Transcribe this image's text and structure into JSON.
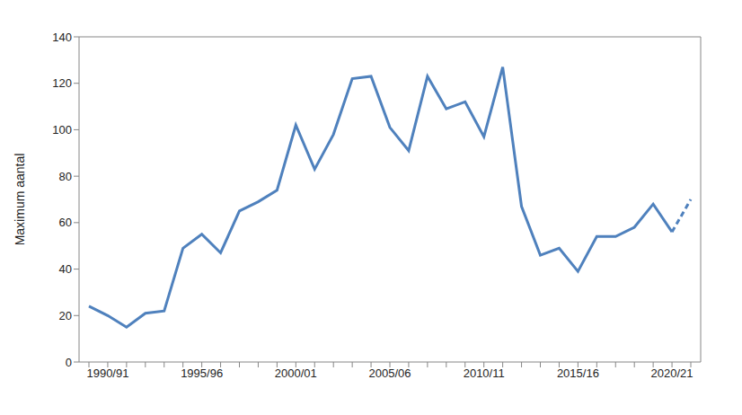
{
  "chart_data": {
    "type": "line",
    "y_label": "Maximum aantal",
    "categories": [
      null,
      "1990/91",
      null,
      null,
      null,
      null,
      "1995/96",
      null,
      null,
      null,
      null,
      "2000/01",
      null,
      null,
      null,
      null,
      "2005/06",
      null,
      null,
      null,
      null,
      "2010/11",
      null,
      null,
      null,
      null,
      "2015/16",
      null,
      null,
      null,
      null,
      "2020/21",
      null
    ],
    "series": [
      {
        "color": "#4f81bd",
        "line_style": "solid",
        "values": [
          24,
          20,
          15,
          21,
          22,
          49,
          55,
          47,
          65,
          69,
          74,
          102,
          83,
          98,
          122,
          123,
          101,
          91,
          123,
          109,
          112,
          97,
          127,
          67,
          46,
          49,
          39,
          54,
          54,
          58,
          68,
          56,
          null
        ]
      },
      {
        "color": "#4f81bd",
        "line_style": "dashed",
        "values": [
          null,
          null,
          null,
          null,
          null,
          null,
          null,
          null,
          null,
          null,
          null,
          null,
          null,
          null,
          null,
          null,
          null,
          null,
          null,
          null,
          null,
          null,
          null,
          null,
          null,
          null,
          null,
          null,
          null,
          null,
          null,
          56,
          70
        ]
      }
    ],
    "ylim": [
      0,
      140
    ],
    "yticks": [
      0,
      20,
      40,
      60,
      80,
      100,
      120,
      140
    ],
    "grid": false
  }
}
